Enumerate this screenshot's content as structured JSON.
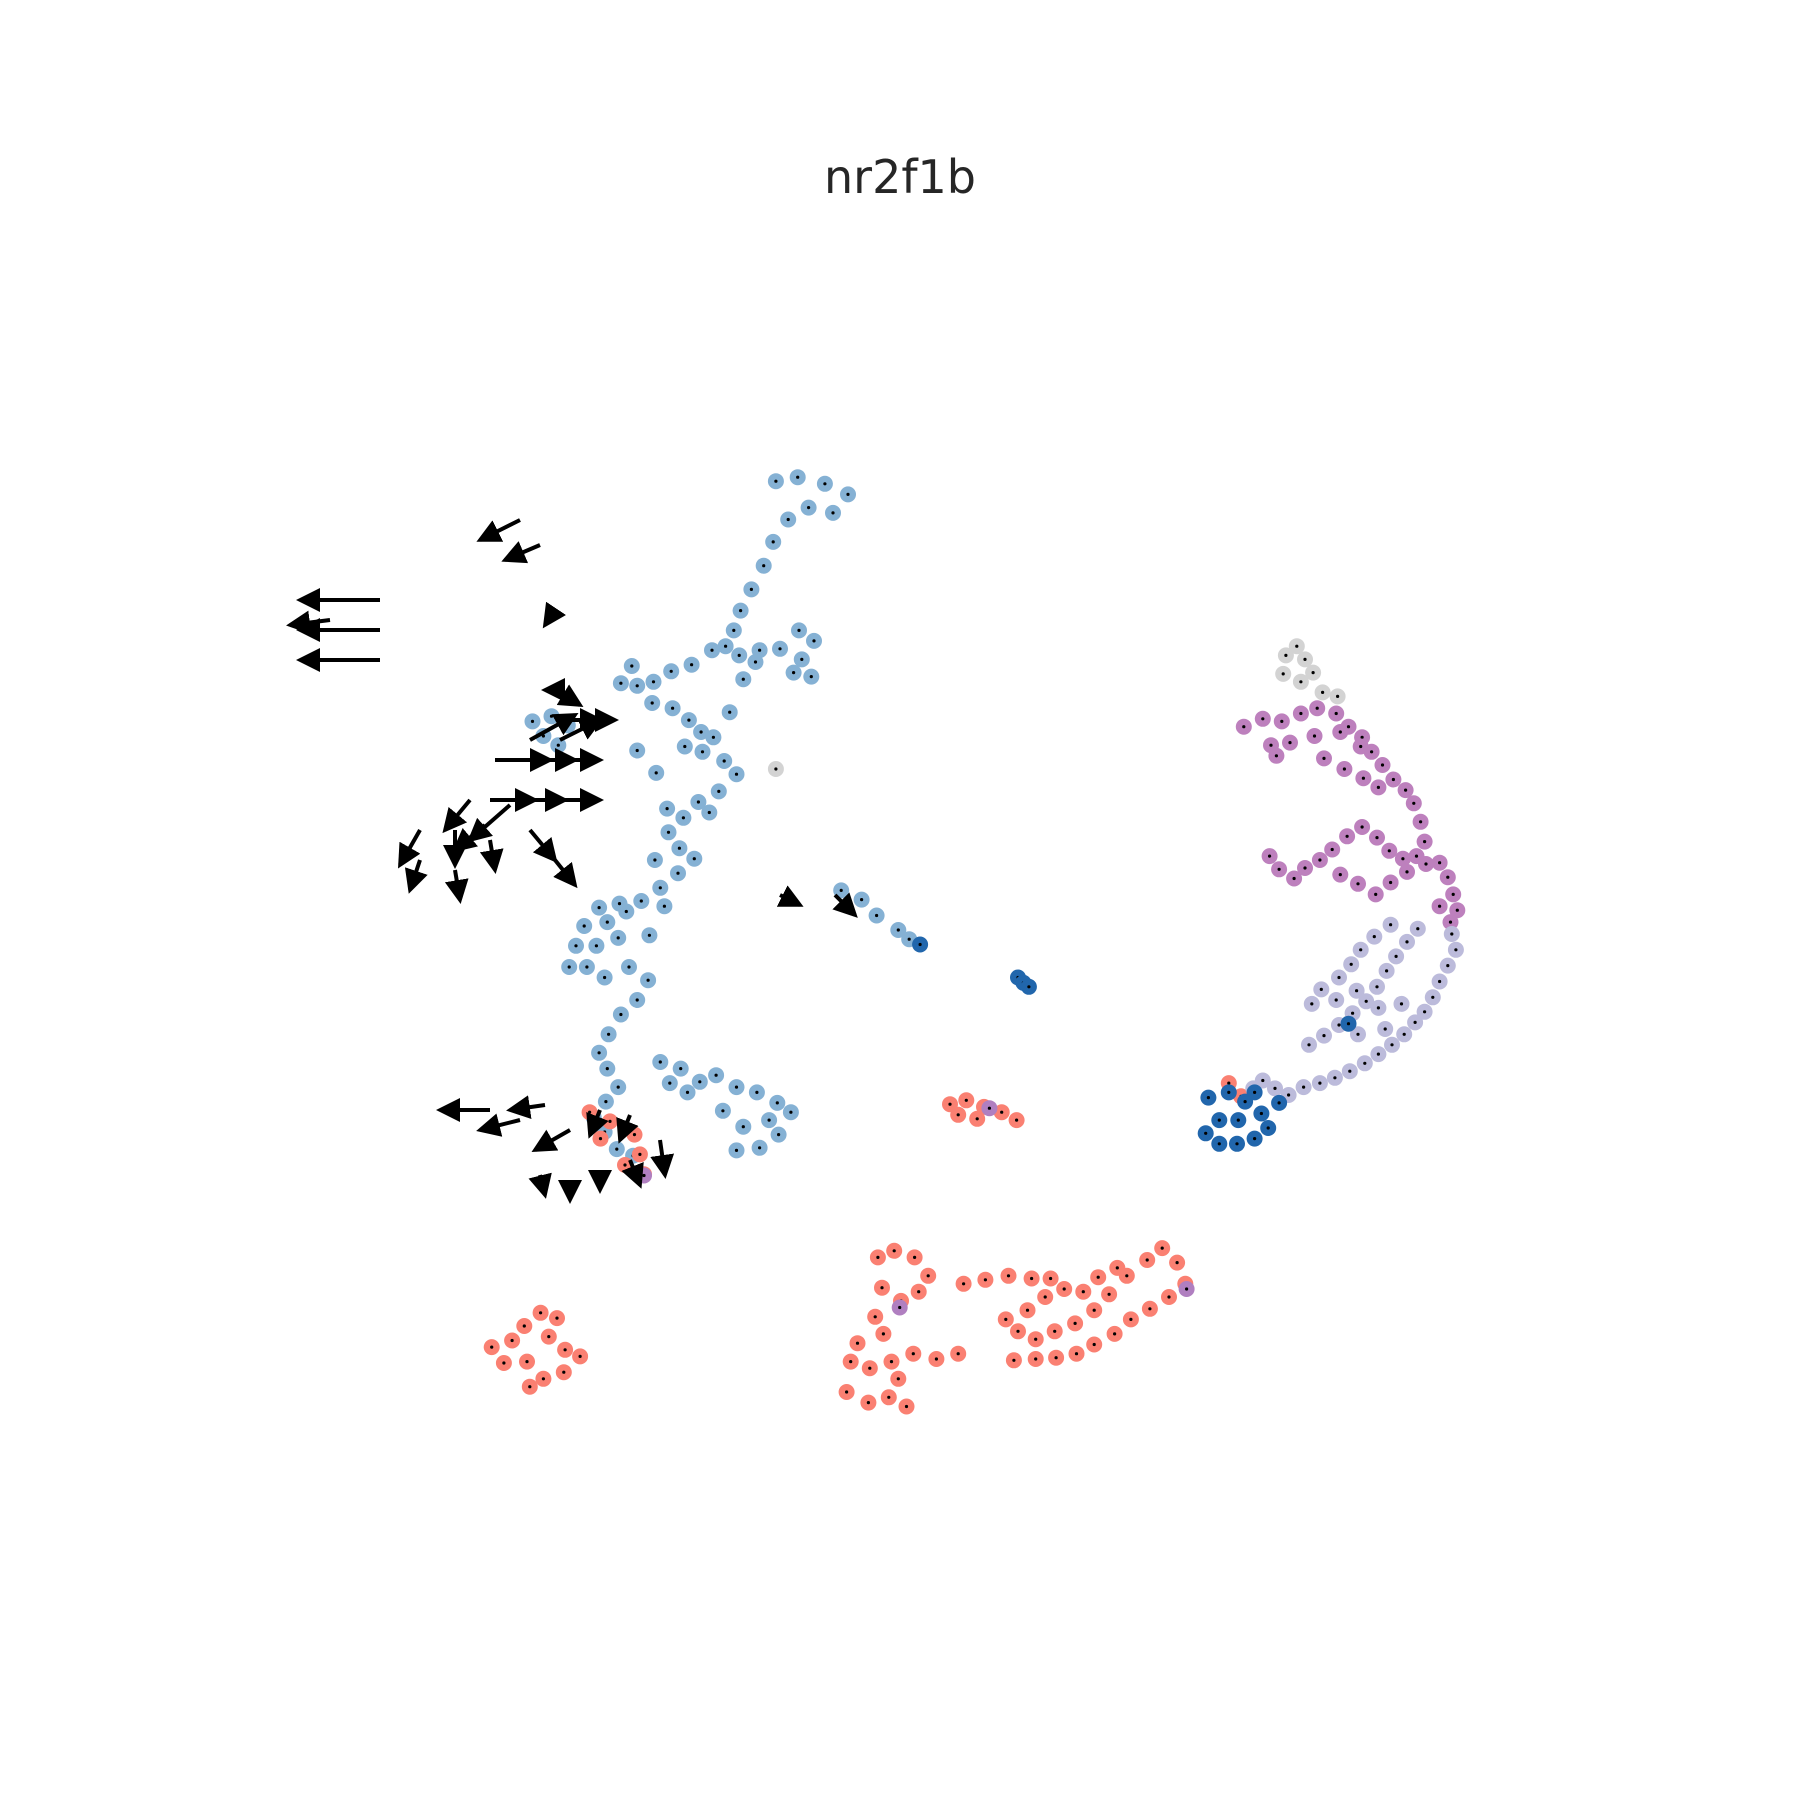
{
  "chart_data": {
    "type": "scatter",
    "title": "nr2f1b",
    "xlabel": "",
    "ylabel": "",
    "axes": "off",
    "grid": false,
    "legend": "none",
    "xlim": [
      0,
      100
    ],
    "ylim": [
      0,
      100
    ],
    "clusters": [
      {
        "color": "#85b1d4",
        "points": [
          [
            37.2,
            16.0
          ],
          [
            38.8,
            15.7
          ],
          [
            40.8,
            16.2
          ],
          [
            42.5,
            17.0
          ],
          [
            41.4,
            18.4
          ],
          [
            39.6,
            18.0
          ],
          [
            38.1,
            18.9
          ],
          [
            37.0,
            20.6
          ],
          [
            36.3,
            22.4
          ],
          [
            35.4,
            24.2
          ],
          [
            34.6,
            25.8
          ],
          [
            34.1,
            27.3
          ],
          [
            33.5,
            28.5
          ],
          [
            34.5,
            29.2
          ],
          [
            32.5,
            28.8
          ],
          [
            31.0,
            29.9
          ],
          [
            29.5,
            30.4
          ],
          [
            28.2,
            31.2
          ],
          [
            27.0,
            31.5
          ],
          [
            28.1,
            32.8
          ],
          [
            29.6,
            33.2
          ],
          [
            30.8,
            34.1
          ],
          [
            31.7,
            35.0
          ],
          [
            30.5,
            36.1
          ],
          [
            31.8,
            36.5
          ],
          [
            33.4,
            37.2
          ],
          [
            34.3,
            38.2
          ],
          [
            33.0,
            39.5
          ],
          [
            31.5,
            40.3
          ],
          [
            30.4,
            41.5
          ],
          [
            29.3,
            42.6
          ],
          [
            30.1,
            43.8
          ],
          [
            31.2,
            44.6
          ],
          [
            30.0,
            45.7
          ],
          [
            28.7,
            46.8
          ],
          [
            27.3,
            47.8
          ],
          [
            26.2,
            48.6
          ],
          [
            24.8,
            49.4
          ],
          [
            25.6,
            50.6
          ],
          [
            24.0,
            51.2
          ],
          [
            23.3,
            52.8
          ],
          [
            24.6,
            53.6
          ],
          [
            26.4,
            52.8
          ],
          [
            27.8,
            53.8
          ],
          [
            27.0,
            55.3
          ],
          [
            25.8,
            56.4
          ],
          [
            24.9,
            57.9
          ],
          [
            24.2,
            59.3
          ],
          [
            24.8,
            60.5
          ],
          [
            25.6,
            61.9
          ],
          [
            24.7,
            63.0
          ],
          [
            23.8,
            64.2
          ],
          [
            24.6,
            65.3
          ],
          [
            25.5,
            66.6
          ],
          [
            26.7,
            67.1
          ],
          [
            24.2,
            48.3
          ],
          [
            23.1,
            49.7
          ],
          [
            22.5,
            51.2
          ],
          [
            22.0,
            52.8
          ],
          [
            25.7,
            48.0
          ],
          [
            27.9,
            50.4
          ],
          [
            29.0,
            48.2
          ],
          [
            28.3,
            44.7
          ],
          [
            29.2,
            40.8
          ],
          [
            32.3,
            41.1
          ],
          [
            28.4,
            38.1
          ],
          [
            27.0,
            36.4
          ],
          [
            32.6,
            35.4
          ],
          [
            33.8,
            33.5
          ],
          [
            26.6,
            30.0
          ],
          [
            25.8,
            31.3
          ],
          [
            36.0,
            28.8
          ],
          [
            37.5,
            28.7
          ],
          [
            38.9,
            27.3
          ],
          [
            40.0,
            28.1
          ],
          [
            39.1,
            29.5
          ],
          [
            39.8,
            30.8
          ],
          [
            38.5,
            30.5
          ],
          [
            35.7,
            29.7
          ],
          [
            34.8,
            31.0
          ],
          [
            19.3,
            34.2
          ],
          [
            20.7,
            33.8
          ],
          [
            21.9,
            34.5
          ],
          [
            20.1,
            35.3
          ],
          [
            21.2,
            36.0
          ],
          [
            42.0,
            47.0
          ],
          [
            43.5,
            47.7
          ],
          [
            44.6,
            48.9
          ],
          [
            46.2,
            50.0
          ],
          [
            47.0,
            50.7
          ],
          [
            28.7,
            60.0
          ],
          [
            30.2,
            60.5
          ],
          [
            31.6,
            61.5
          ],
          [
            32.8,
            61.0
          ],
          [
            34.3,
            61.9
          ],
          [
            35.8,
            62.3
          ],
          [
            37.3,
            63.1
          ],
          [
            38.3,
            63.8
          ],
          [
            36.7,
            64.4
          ],
          [
            34.8,
            64.9
          ],
          [
            33.3,
            63.7
          ],
          [
            30.7,
            62.3
          ],
          [
            29.4,
            61.6
          ],
          [
            36.0,
            66.5
          ],
          [
            34.3,
            66.7
          ],
          [
            37.4,
            65.5
          ]
        ]
      },
      {
        "color": "#fa8072",
        "points": [
          [
            23.5,
            63.8
          ],
          [
            25.0,
            64.5
          ],
          [
            26.8,
            65.5
          ],
          [
            27.2,
            67.0
          ],
          [
            27.5,
            68.5
          ],
          [
            26.1,
            67.8
          ],
          [
            24.3,
            65.8
          ],
          [
            50.0,
            63.2
          ],
          [
            51.2,
            62.9
          ],
          [
            52.5,
            63.4
          ],
          [
            53.8,
            63.8
          ],
          [
            54.9,
            64.4
          ],
          [
            52.0,
            64.3
          ],
          [
            50.6,
            64.0
          ],
          [
            44.7,
            74.8
          ],
          [
            45.9,
            74.3
          ],
          [
            47.4,
            74.8
          ],
          [
            48.4,
            76.2
          ],
          [
            47.7,
            77.4
          ],
          [
            46.4,
            78.1
          ],
          [
            45.0,
            77.1
          ],
          [
            44.5,
            79.3
          ],
          [
            45.1,
            80.6
          ],
          [
            43.2,
            81.3
          ],
          [
            42.7,
            82.7
          ],
          [
            44.1,
            83.2
          ],
          [
            45.7,
            82.7
          ],
          [
            47.3,
            82.1
          ],
          [
            49.0,
            82.5
          ],
          [
            50.6,
            82.1
          ],
          [
            46.2,
            84.0
          ],
          [
            45.5,
            85.4
          ],
          [
            44.0,
            85.8
          ],
          [
            42.4,
            85.0
          ],
          [
            46.8,
            86.1
          ],
          [
            51.0,
            76.8
          ],
          [
            52.6,
            76.5
          ],
          [
            54.3,
            76.2
          ],
          [
            56.0,
            76.4
          ],
          [
            57.4,
            76.4
          ],
          [
            58.4,
            77.2
          ],
          [
            57.0,
            77.8
          ],
          [
            55.7,
            78.8
          ],
          [
            54.1,
            79.5
          ],
          [
            55.0,
            80.4
          ],
          [
            56.3,
            81.0
          ],
          [
            57.7,
            80.4
          ],
          [
            59.2,
            79.8
          ],
          [
            60.6,
            78.8
          ],
          [
            61.7,
            77.6
          ],
          [
            63.0,
            76.2
          ],
          [
            64.5,
            75.0
          ],
          [
            65.6,
            74.1
          ],
          [
            66.7,
            75.2
          ],
          [
            67.3,
            76.8
          ],
          [
            66.1,
            77.8
          ],
          [
            64.7,
            78.7
          ],
          [
            63.3,
            79.5
          ],
          [
            62.1,
            80.6
          ],
          [
            60.6,
            81.4
          ],
          [
            59.3,
            82.1
          ],
          [
            57.8,
            82.4
          ],
          [
            56.3,
            82.5
          ],
          [
            54.7,
            82.6
          ],
          [
            62.3,
            75.6
          ],
          [
            60.9,
            76.3
          ],
          [
            59.8,
            77.4
          ],
          [
            16.3,
            81.6
          ],
          [
            17.8,
            81.1
          ],
          [
            18.7,
            80.0
          ],
          [
            19.9,
            79.0
          ],
          [
            21.1,
            79.4
          ],
          [
            20.5,
            80.8
          ],
          [
            21.7,
            81.8
          ],
          [
            22.8,
            82.3
          ],
          [
            21.6,
            83.5
          ],
          [
            20.1,
            84.0
          ],
          [
            19.1,
            84.6
          ],
          [
            17.2,
            82.8
          ],
          [
            18.9,
            82.7
          ],
          [
            70.5,
            61.6
          ],
          [
            71.4,
            62.6
          ]
        ]
      },
      {
        "color": "#bd80bd",
        "points": [
          [
            71.6,
            34.6
          ],
          [
            73.0,
            34.0
          ],
          [
            74.4,
            34.2
          ],
          [
            75.8,
            33.6
          ],
          [
            77.0,
            33.2
          ],
          [
            78.4,
            33.6
          ],
          [
            79.3,
            34.6
          ],
          [
            80.3,
            35.4
          ],
          [
            81.0,
            36.5
          ],
          [
            81.8,
            37.5
          ],
          [
            82.6,
            38.6
          ],
          [
            83.5,
            39.4
          ],
          [
            84.1,
            40.4
          ],
          [
            84.6,
            41.8
          ],
          [
            84.9,
            43.3
          ],
          [
            84.3,
            44.4
          ],
          [
            83.3,
            44.6
          ],
          [
            82.3,
            44.0
          ],
          [
            81.4,
            43.0
          ],
          [
            80.3,
            42.2
          ],
          [
            79.2,
            42.9
          ],
          [
            78.1,
            43.9
          ],
          [
            77.2,
            44.7
          ],
          [
            76.1,
            45.3
          ],
          [
            75.3,
            46.1
          ],
          [
            74.2,
            45.4
          ],
          [
            73.5,
            44.4
          ],
          [
            78.7,
            45.8
          ],
          [
            80.0,
            46.5
          ],
          [
            81.3,
            47.3
          ],
          [
            82.4,
            46.4
          ],
          [
            83.6,
            45.6
          ],
          [
            85.0,
            45.0
          ],
          [
            86.0,
            44.9
          ],
          [
            86.6,
            46.0
          ],
          [
            87.0,
            47.3
          ],
          [
            87.3,
            48.5
          ],
          [
            86.8,
            49.4
          ],
          [
            86.0,
            48.2
          ],
          [
            80.2,
            36.1
          ],
          [
            78.7,
            35.0
          ],
          [
            76.8,
            35.3
          ],
          [
            75.0,
            35.8
          ],
          [
            73.6,
            36.0
          ],
          [
            81.5,
            39.2
          ],
          [
            80.4,
            38.5
          ],
          [
            79.0,
            37.8
          ],
          [
            77.5,
            37.0
          ],
          [
            74.0,
            36.8
          ]
        ]
      },
      {
        "color": "#bcbbdb",
        "points": [
          [
            86.9,
            50.3
          ],
          [
            87.2,
            51.5
          ],
          [
            86.6,
            52.7
          ],
          [
            86.0,
            53.9
          ],
          [
            85.5,
            55.1
          ],
          [
            84.9,
            56.2
          ],
          [
            84.2,
            57.0
          ],
          [
            83.4,
            57.9
          ],
          [
            82.5,
            58.7
          ],
          [
            81.5,
            59.4
          ],
          [
            80.5,
            60.1
          ],
          [
            79.4,
            60.7
          ],
          [
            78.3,
            61.2
          ],
          [
            77.2,
            61.6
          ],
          [
            76.0,
            61.9
          ],
          [
            74.9,
            62.5
          ],
          [
            73.9,
            62.0
          ],
          [
            73.0,
            61.4
          ],
          [
            72.3,
            62.0
          ],
          [
            76.4,
            58.7
          ],
          [
            77.5,
            58.0
          ],
          [
            78.6,
            57.2
          ],
          [
            79.6,
            56.3
          ],
          [
            80.6,
            55.4
          ],
          [
            81.4,
            54.3
          ],
          [
            82.1,
            53.1
          ],
          [
            82.8,
            52.0
          ],
          [
            83.6,
            50.9
          ],
          [
            84.4,
            49.9
          ],
          [
            82.4,
            49.6
          ],
          [
            81.2,
            50.5
          ],
          [
            80.2,
            51.5
          ],
          [
            79.5,
            52.6
          ],
          [
            78.6,
            53.6
          ],
          [
            77.3,
            54.5
          ],
          [
            76.6,
            55.6
          ],
          [
            78.4,
            55.3
          ],
          [
            79.9,
            54.6
          ],
          [
            81.5,
            55.9
          ],
          [
            80.0,
            57.9
          ],
          [
            82.0,
            57.5
          ],
          [
            83.2,
            55.6
          ]
        ]
      },
      {
        "color": "#2166ac",
        "points": [
          [
            69.0,
            62.7
          ],
          [
            70.5,
            62.3
          ],
          [
            71.7,
            63.0
          ],
          [
            72.9,
            63.9
          ],
          [
            73.4,
            65.0
          ],
          [
            72.4,
            65.8
          ],
          [
            71.1,
            66.2
          ],
          [
            69.8,
            66.2
          ],
          [
            68.8,
            65.4
          ],
          [
            69.8,
            64.4
          ],
          [
            71.2,
            64.4
          ],
          [
            72.4,
            62.3
          ],
          [
            74.2,
            63.1
          ],
          [
            55.0,
            53.6
          ],
          [
            55.4,
            54.0
          ],
          [
            55.8,
            54.3
          ],
          [
            79.3,
            57.1
          ],
          [
            47.8,
            51.1
          ]
        ]
      },
      {
        "color": "#d3d3d3",
        "points": [
          [
            74.7,
            29.2
          ],
          [
            75.5,
            28.5
          ],
          [
            76.1,
            29.5
          ],
          [
            76.7,
            30.5
          ],
          [
            75.8,
            31.2
          ],
          [
            74.5,
            30.6
          ],
          [
            77.4,
            32.0
          ],
          [
            78.5,
            32.3
          ],
          [
            37.2,
            37.8
          ]
        ]
      },
      {
        "color": "#b07fc0",
        "points": [
          [
            27.5,
            68.6
          ],
          [
            67.4,
            77.2
          ],
          [
            46.3,
            78.6
          ],
          [
            52.9,
            63.5
          ]
        ]
      }
    ]
  }
}
